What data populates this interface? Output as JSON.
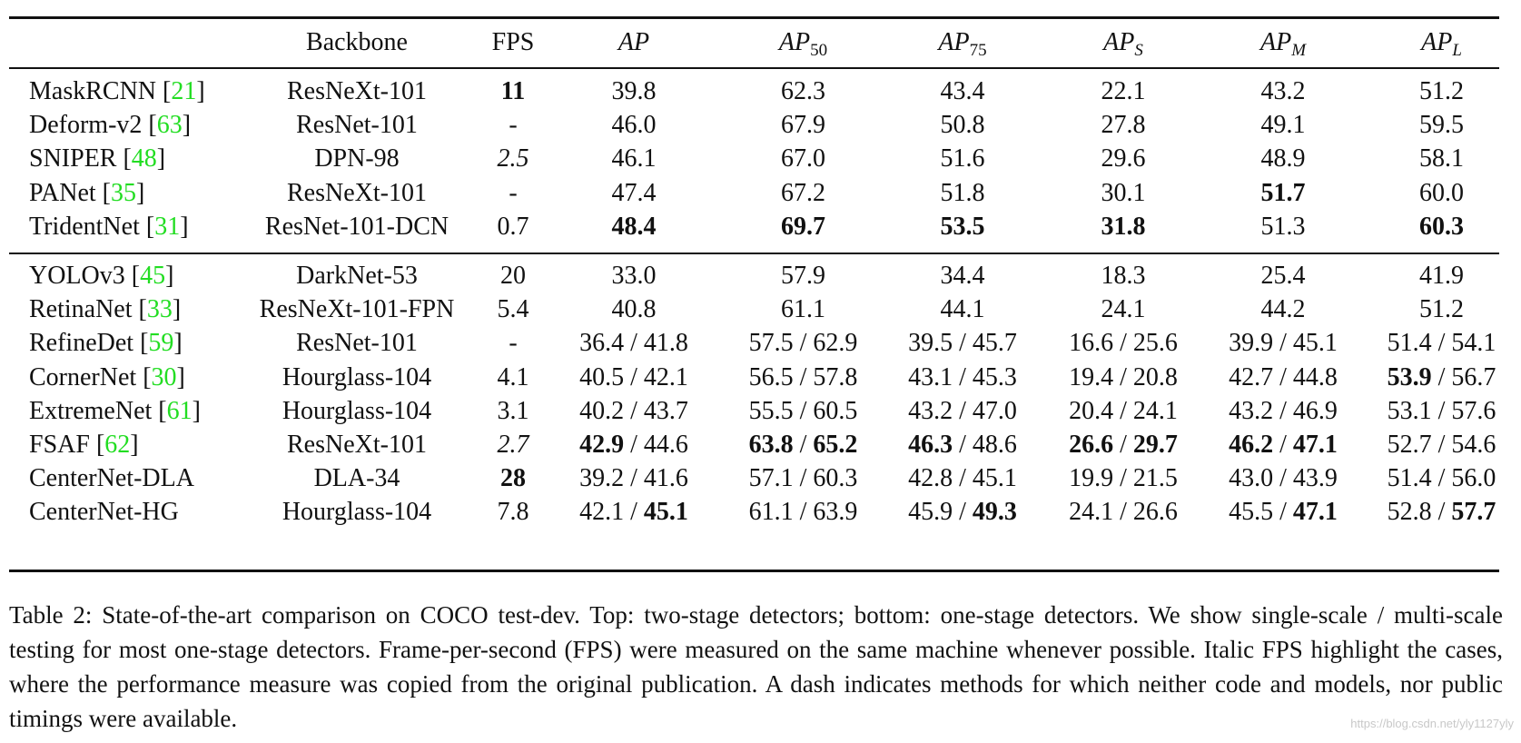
{
  "table": {
    "header": {
      "backbone": "Backbone",
      "fps": "FPS",
      "ap": "AP",
      "ap50": {
        "base": "AP",
        "sub": "50"
      },
      "ap75": {
        "base": "AP",
        "sub": "75"
      },
      "aps": {
        "base": "AP",
        "sub": "S"
      },
      "apm": {
        "base": "AP",
        "sub": "M"
      },
      "apl": {
        "base": "AP",
        "sub": "L"
      }
    },
    "two_stage": [
      {
        "method": "MaskRCNN",
        "cite": "21",
        "backbone": "ResNeXt-101",
        "fps": "11",
        "fps_style": "bold",
        "ap": "39.8",
        "ap50": "62.3",
        "ap75": "43.4",
        "aps": "22.1",
        "apm": "43.2",
        "apl": "51.2"
      },
      {
        "method": "Deform-v2",
        "cite": "63",
        "backbone": "ResNet-101",
        "fps": "-",
        "fps_style": "normal",
        "ap": "46.0",
        "ap50": "67.9",
        "ap75": "50.8",
        "aps": "27.8",
        "apm": "49.1",
        "apl": "59.5"
      },
      {
        "method": "SNIPER",
        "cite": "48",
        "backbone": "DPN-98",
        "fps": "2.5",
        "fps_style": "italic",
        "ap": "46.1",
        "ap50": "67.0",
        "ap75": "51.6",
        "aps": "29.6",
        "apm": "48.9",
        "apl": "58.1"
      },
      {
        "method": "PANet",
        "cite": "35",
        "backbone": "ResNeXt-101",
        "fps": "-",
        "fps_style": "normal",
        "ap": "47.4",
        "ap50": "67.2",
        "ap75": "51.8",
        "aps": "30.1",
        "apm": "51.7",
        "apl": "60.0"
      },
      {
        "method": "TridentNet",
        "cite": "31",
        "backbone": "ResNet-101-DCN",
        "fps": "0.7",
        "fps_style": "normal",
        "ap": "48.4",
        "ap50": "69.7",
        "ap75": "53.5",
        "aps": "31.8",
        "apm": "51.3",
        "apl": "60.3"
      }
    ],
    "one_stage": [
      {
        "method": "YOLOv3",
        "cite": "45",
        "backbone": "DarkNet-53",
        "fps": "20",
        "fps_style": "normal",
        "ap": "33.0",
        "ap50": "57.9",
        "ap75": "34.4",
        "aps": "18.3",
        "apm": "25.4",
        "apl": "41.9"
      },
      {
        "method": "RetinaNet",
        "cite": "33",
        "backbone": "ResNeXt-101-FPN",
        "fps": "5.4",
        "fps_style": "normal",
        "ap": "40.8",
        "ap50": "61.1",
        "ap75": "44.1",
        "aps": "24.1",
        "apm": "44.2",
        "apl": "51.2"
      },
      {
        "method": "RefineDet",
        "cite": "59",
        "backbone": "ResNet-101",
        "fps": "-",
        "fps_style": "normal",
        "ap": "36.4 / 41.8",
        "ap50": "57.5 / 62.9",
        "ap75": "39.5 / 45.7",
        "aps": "16.6 / 25.6",
        "apm": "39.9 / 45.1",
        "apl": "51.4 / 54.1"
      },
      {
        "method": "CornerNet",
        "cite": "30",
        "backbone": "Hourglass-104",
        "fps": "4.1",
        "fps_style": "normal",
        "ap": "40.5 / 42.1",
        "ap50": "56.5 / 57.8",
        "ap75": "43.1 / 45.3",
        "aps": "19.4 / 20.8",
        "apm": "42.7 / 44.8",
        "apl": "53.9 / 56.7"
      },
      {
        "method": "ExtremeNet",
        "cite": "61",
        "backbone": "Hourglass-104",
        "fps": "3.1",
        "fps_style": "normal",
        "ap": "40.2 / 43.7",
        "ap50": "55.5 / 60.5",
        "ap75": "43.2 / 47.0",
        "aps": "20.4 / 24.1",
        "apm": "43.2 / 46.9",
        "apl": "53.1 / 57.6"
      },
      {
        "method": "FSAF",
        "cite": "62",
        "backbone": "ResNeXt-101",
        "fps": "2.7",
        "fps_style": "italic",
        "ap": "42.9 / 44.6",
        "ap50": "63.8 / 65.2",
        "ap75": "46.3 / 48.6",
        "aps": "26.6 / 29.7",
        "apm": "46.2 / 47.1",
        "apl": "52.7 / 54.6"
      },
      {
        "method": "CenterNet-DLA",
        "cite": "",
        "backbone": "DLA-34",
        "fps": "28",
        "fps_style": "bold",
        "ap": "39.2 / 41.6",
        "ap50": "57.1 / 60.3",
        "ap75": "42.8 / 45.1",
        "aps": "19.9 / 21.5",
        "apm": "43.0 / 43.9",
        "apl": "51.4 / 56.0"
      },
      {
        "method": "CenterNet-HG",
        "cite": "",
        "backbone": "Hourglass-104",
        "fps": "7.8",
        "fps_style": "normal",
        "ap": "42.1 / 45.1",
        "ap50": "61.1 / 63.9",
        "ap75": "45.9 / 49.3",
        "aps": "24.1 / 26.6",
        "apm": "45.5 / 47.1",
        "apl": "52.8 / 57.7"
      }
    ],
    "bold_cells": {
      "two_stage": [
        {
          "row": 3,
          "col": "apm"
        },
        {
          "row": 4,
          "col": "ap"
        },
        {
          "row": 4,
          "col": "ap50"
        },
        {
          "row": 4,
          "col": "ap75"
        },
        {
          "row": 4,
          "col": "aps"
        },
        {
          "row": 4,
          "col": "apl"
        }
      ],
      "one_stage": [
        {
          "row": 3,
          "col": "apl",
          "part": 0
        },
        {
          "row": 5,
          "col": "ap",
          "part": 0
        },
        {
          "row": 5,
          "col": "ap50",
          "part": 0
        },
        {
          "row": 5,
          "col": "ap50",
          "part": 1
        },
        {
          "row": 5,
          "col": "ap75",
          "part": 0
        },
        {
          "row": 5,
          "col": "aps",
          "part": 0
        },
        {
          "row": 5,
          "col": "aps",
          "part": 1
        },
        {
          "row": 5,
          "col": "apm",
          "part": 0
        },
        {
          "row": 5,
          "col": "apm",
          "part": 1
        },
        {
          "row": 7,
          "col": "ap",
          "part": 1
        },
        {
          "row": 7,
          "col": "ap75",
          "part": 1
        },
        {
          "row": 7,
          "col": "apm",
          "part": 1
        },
        {
          "row": 7,
          "col": "apl",
          "part": 1
        }
      ]
    }
  },
  "caption": "Table 2: State-of-the-art comparison on COCO test-dev. Top: two-stage detectors; bottom: one-stage detectors. We show single-scale / multi-scale testing for most one-stage detectors. Frame-per-second (FPS) were measured on the same machine whenever possible. Italic FPS highlight the cases, where the performance measure was copied from the original publication. A dash indicates methods for which neither code and models, nor public timings were available.",
  "watermark": "https://blog.csdn.net/yly1127yly"
}
